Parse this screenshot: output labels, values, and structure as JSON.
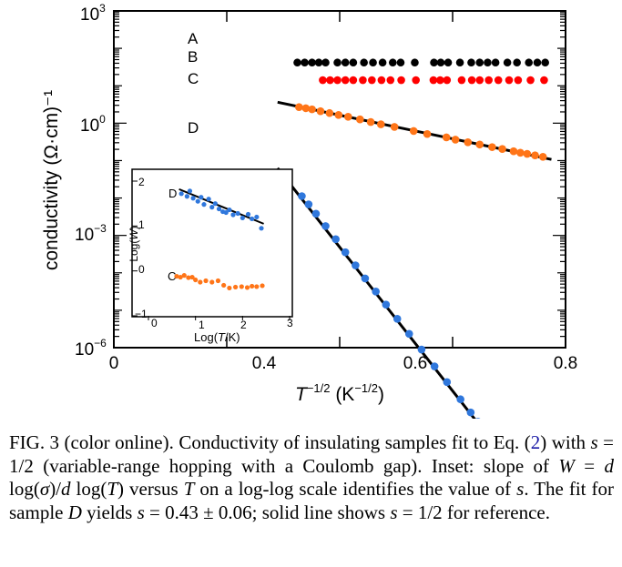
{
  "chart_data": [
    {
      "type": "scatter",
      "ylabel": "conductivity (Ω·cm)⁻¹",
      "xlim": [
        0,
        0.8
      ],
      "ylim_log10": [
        -6,
        3
      ],
      "x_ticks": [
        "0",
        "0.4",
        "0.6",
        "0.8"
      ],
      "x_tick_values": [
        0,
        0.4,
        0.6,
        0.8
      ],
      "y_ticks": [
        {
          "base": "10",
          "exp": "3",
          "value": 3
        },
        {
          "base": "10",
          "exp": "0",
          "value": 0
        },
        {
          "base": "10",
          "exp": "−3",
          "value": -3
        },
        {
          "base": "10",
          "exp": "−6",
          "value": -6
        }
      ],
      "x_label_parts": {
        "t": "T",
        "t_exp": "−1/2",
        "unit": " (K",
        "unit_exp": "−1/2",
        "close": ")"
      },
      "series": [
        {
          "name": "A",
          "color": "#000000",
          "x": [
            0.325,
            0.338,
            0.351,
            0.363,
            0.375,
            0.396,
            0.41,
            0.424,
            0.443,
            0.459,
            0.476,
            0.494,
            0.508,
            0.533,
            0.567,
            0.579,
            0.592,
            0.613,
            0.633,
            0.648,
            0.662,
            0.676,
            0.697,
            0.714,
            0.735,
            0.75,
            0.764
          ],
          "y": [
            1.62,
            1.62,
            1.62,
            1.62,
            1.62,
            1.62,
            1.62,
            1.62,
            1.62,
            1.62,
            1.62,
            1.62,
            1.62,
            1.62,
            1.62,
            1.62,
            1.62,
            1.62,
            1.62,
            1.62,
            1.62,
            1.62,
            1.62,
            1.62,
            1.62,
            1.62,
            1.62
          ]
        },
        {
          "name": "B",
          "color": "#ff0000",
          "x": [
            0.37,
            0.383,
            0.396,
            0.41,
            0.424,
            0.441,
            0.457,
            0.474,
            0.49,
            0.509,
            0.535,
            0.566,
            0.578,
            0.59,
            0.616,
            0.634,
            0.648,
            0.664,
            0.681,
            0.7,
            0.716,
            0.738,
            0.762
          ],
          "y": [
            1.15,
            1.15,
            1.15,
            1.15,
            1.15,
            1.15,
            1.15,
            1.15,
            1.15,
            1.15,
            1.15,
            1.15,
            1.15,
            1.15,
            1.15,
            1.15,
            1.15,
            1.15,
            1.15,
            1.15,
            1.15,
            1.15,
            1.15
          ]
        },
        {
          "name": "C",
          "color": "#ff7518",
          "x": [
            0.328,
            0.34,
            0.351,
            0.366,
            0.382,
            0.398,
            0.415,
            0.436,
            0.455,
            0.473,
            0.497,
            0.531,
            0.555,
            0.589,
            0.605,
            0.627,
            0.648,
            0.67,
            0.688,
            0.708,
            0.72,
            0.732,
            0.746,
            0.76
          ],
          "y": [
            0.43,
            0.4,
            0.37,
            0.32,
            0.27,
            0.22,
            0.17,
            0.1,
            0.03,
            -0.03,
            -0.1,
            -0.21,
            -0.29,
            -0.38,
            -0.44,
            -0.51,
            -0.57,
            -0.64,
            -0.69,
            -0.75,
            -0.79,
            -0.82,
            -0.86,
            -0.9
          ]
        },
        {
          "name": "D",
          "color": "#2f77dc",
          "x": [
            0.333,
            0.345,
            0.358,
            0.375,
            0.393,
            0.41,
            0.428,
            0.445,
            0.464,
            0.482,
            0.502,
            0.523,
            0.545,
            0.568,
            0.59,
            0.614,
            0.632,
            0.645,
            0.658,
            0.672,
            0.695,
            0.717,
            0.745,
            0.763,
            0.775
          ],
          "y": [
            -1.95,
            -2.17,
            -2.42,
            -2.75,
            -3.1,
            -3.45,
            -3.8,
            -4.15,
            -4.5,
            -4.85,
            -5.23,
            -5.63,
            -6.05,
            -6.5,
            -6.92,
            -7.38,
            -7.73,
            -7.98,
            -8.22,
            -8.5,
            -8.93,
            -9.35,
            -9.88,
            -10.23,
            -10.46
          ]
        }
      ],
      "fit_lines": [
        {
          "series": "C",
          "x": [
            0.29,
            0.775
          ],
          "y": [
            0.56,
            -0.97
          ]
        },
        {
          "series": "D",
          "x": [
            0.29,
            0.8
          ],
          "y": [
            -1.2,
            -11.0
          ]
        }
      ],
      "labels": [
        "A",
        "B",
        "C",
        "D"
      ]
    },
    {
      "type": "scatter",
      "inset": true,
      "xlabel_parts": {
        "pre": "Log(",
        "var": "T",
        "post": "/K)"
      },
      "ylabel_parts": {
        "pre": "Log(",
        "var": "W",
        "post": ")"
      },
      "xlim": [
        0,
        3
      ],
      "ylim": [
        -1,
        2
      ],
      "x_ticks": [
        "0",
        "1",
        "2",
        "3"
      ],
      "y_ticks": [
        "2",
        "1",
        "0",
        "−1"
      ],
      "series": [
        {
          "name": "D",
          "color": "#2f77dc",
          "x": [
            0.7,
            0.82,
            0.88,
            0.95,
            1.05,
            1.12,
            1.18,
            1.28,
            1.35,
            1.42,
            1.5,
            1.58,
            1.65,
            1.72,
            1.8,
            1.9,
            2.0,
            2.12,
            2.2,
            2.3,
            2.4
          ],
          "y": [
            1.72,
            1.66,
            1.78,
            1.62,
            1.55,
            1.64,
            1.48,
            1.6,
            1.42,
            1.5,
            1.38,
            1.32,
            1.3,
            1.36,
            1.25,
            1.28,
            1.18,
            1.26,
            1.16,
            1.2,
            0.95
          ]
        },
        {
          "name": "C",
          "color": "#ff7518",
          "x": [
            0.6,
            0.68,
            0.76,
            0.85,
            0.93,
            1.0,
            1.1,
            1.22,
            1.35,
            1.48,
            1.6,
            1.72,
            1.85,
            1.98,
            2.1,
            2.2,
            2.3,
            2.42
          ],
          "y": [
            -0.12,
            -0.14,
            -0.1,
            -0.15,
            -0.14,
            -0.2,
            -0.25,
            -0.22,
            -0.25,
            -0.22,
            -0.32,
            -0.38,
            -0.36,
            -0.35,
            -0.37,
            -0.34,
            -0.35,
            -0.33
          ]
        }
      ],
      "fit_lines": [
        {
          "series": "D",
          "x": [
            0.65,
            2.45
          ],
          "y": [
            1.82,
            1.05
          ]
        }
      ],
      "labels": [
        "D",
        "C"
      ]
    }
  ],
  "caption": {
    "fig_label": "FIG. 3 (color online).",
    "p1": " Conductivity of insulating samples fit to Eq. (",
    "eq_ref": "2",
    "p2": ") with ",
    "s1": "s",
    "p3": " = 1/2 (variable-range hopping with a Coulomb gap). Inset: slope of ",
    "w": "W",
    "p4": " = ",
    "d1": "d",
    "p5": " log(",
    "sigma": "σ",
    "p6": ")/",
    "d2": "d",
    "p7": " log(",
    "t1": "T",
    "p8": ") versus ",
    "t2": "T",
    "p9": " on a log-log scale identifies the value of ",
    "s2": "s",
    "p10": ". The fit for sample ",
    "dsample": "D",
    "p11": " yields ",
    "s3": "s",
    "p12": " = 0.43 ± 0.06; solid line shows ",
    "s4": "s",
    "p13": " = 1/2 for reference."
  }
}
